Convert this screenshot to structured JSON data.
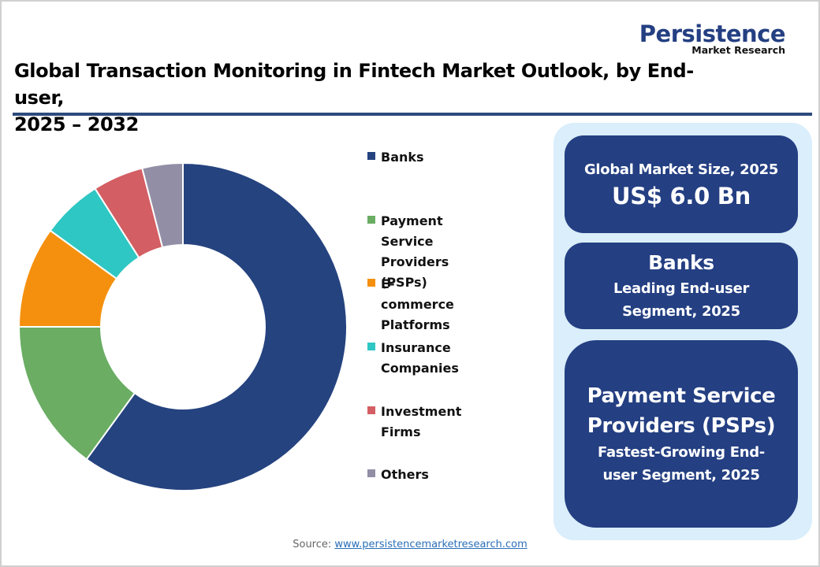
{
  "logo": {
    "main": "Persistence",
    "sub": "Market Research"
  },
  "title": {
    "line1": "Global Transaction Monitoring in Fintech Market Outlook, by End-user,",
    "line2": "2025 – 2032"
  },
  "colors": {
    "brand_navy": "#243f82",
    "title_rule": "#2d4b7d",
    "panel_bg": "#daeefb",
    "link": "#2a6fb8"
  },
  "chart_data": {
    "type": "pie",
    "subtype": "donut",
    "title": "Global Transaction Monitoring in Fintech Market Outlook, by End-user, 2025 – 2032",
    "categories": [
      "Banks",
      "Payment Service Providers (PSPs)",
      "E-commerce Platforms",
      "Insurance Companies",
      "Investment Firms",
      "Others"
    ],
    "values": [
      60,
      15,
      10,
      6,
      5,
      4
    ],
    "unit": "% share (estimated from slice angles)",
    "colors": [
      "#25437f",
      "#6aad63",
      "#f5900f",
      "#2ec7c3",
      "#d35e63",
      "#928ea6"
    ],
    "start_angle": "12 o'clock",
    "direction": "clockwise",
    "legend_position": "right",
    "data_labels": false
  },
  "legend": {
    "items": [
      {
        "label": "Banks",
        "color": "#25437f"
      },
      {
        "label": "Payment Service\nProviders (PSPs)",
        "color": "#6aad63"
      },
      {
        "label": "E-commerce\nPlatforms",
        "color": "#f5900f"
      },
      {
        "label": "Insurance Companies",
        "color": "#2ec7c3"
      },
      {
        "label": "Investment Firms",
        "color": "#d35e63"
      },
      {
        "label": "Others",
        "color": "#928ea6"
      }
    ]
  },
  "cards": {
    "market_size": {
      "label": "Global Market Size, 2025",
      "value": "US$ 6.0 Bn"
    },
    "leading": {
      "name": "Banks",
      "line1": "Leading End-user",
      "line2": "Segment, 2025"
    },
    "fastest": {
      "name_line1": "Payment Service",
      "name_line2": "Providers (PSPs)",
      "line1": "Fastest-Growing End-",
      "line2": "user Segment, 2025"
    }
  },
  "source": {
    "label": "Source:",
    "link_text": "www.persistencemarketresearch.com"
  }
}
